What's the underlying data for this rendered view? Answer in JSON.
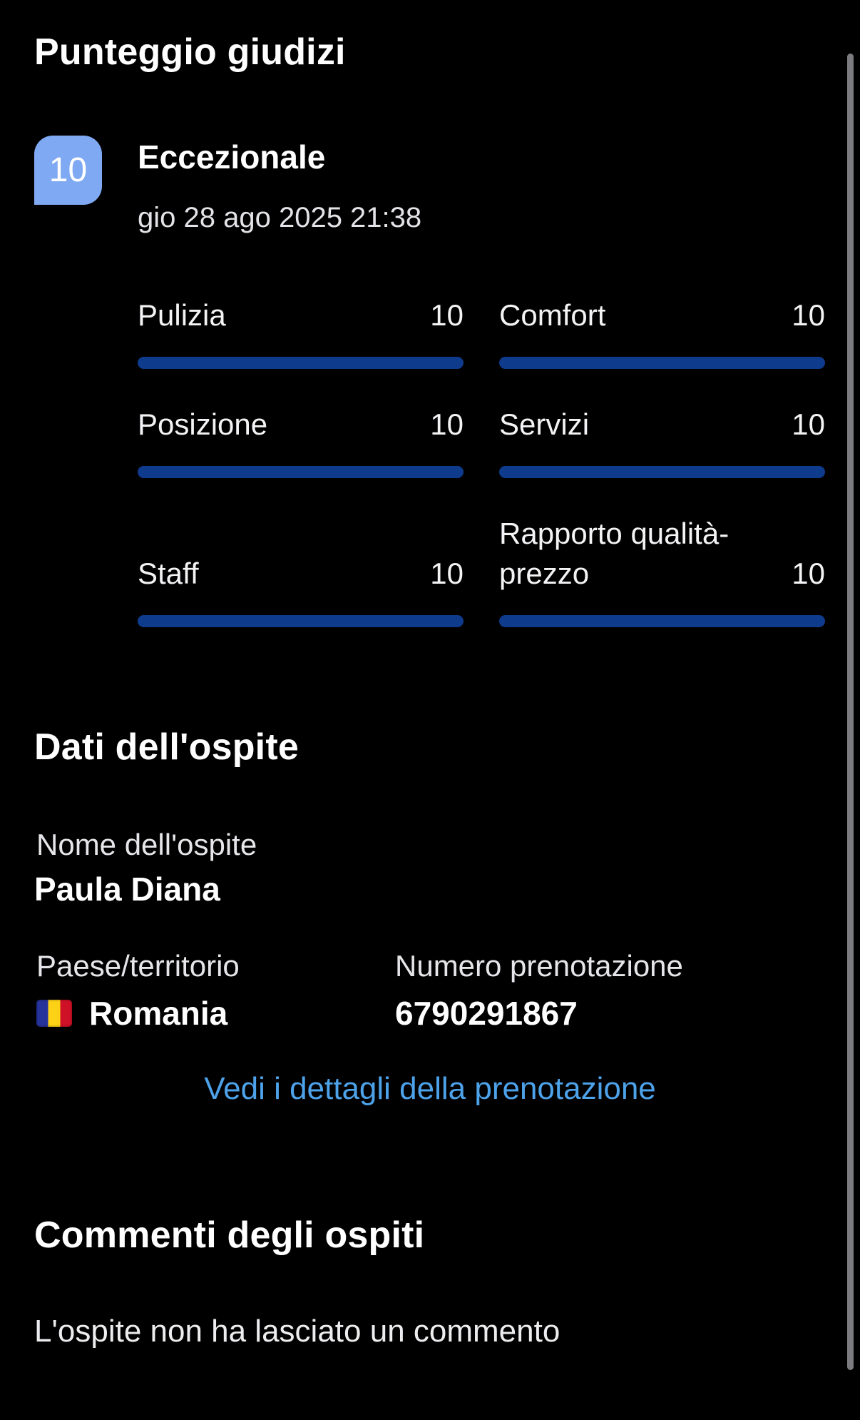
{
  "page": {
    "background_color": "#000000",
    "scrollbar_color": "#7c7c80"
  },
  "review_score": {
    "title": "Punteggio giudizi",
    "score": "10",
    "score_badge_color": "#7fa9f2",
    "label": "Eccezionale",
    "date": "gio 28 ago 2025 21:38",
    "bar_color": "#0e3b8c",
    "ratings": [
      {
        "label": "Pulizia",
        "value": 10,
        "max": 10
      },
      {
        "label": "Comfort",
        "value": 10,
        "max": 10
      },
      {
        "label": "Posizione",
        "value": 10,
        "max": 10
      },
      {
        "label": "Servizi",
        "value": 10,
        "max": 10
      },
      {
        "label": "Staff",
        "value": 10,
        "max": 10
      },
      {
        "label": "Rapporto qualità-prezzo",
        "value": 10,
        "max": 10
      }
    ]
  },
  "guest_details": {
    "title": "Dati dell'ospite",
    "name_label": "Nome dell'ospite",
    "name_value": "Paula Diana",
    "country_label": "Paese/territorio",
    "country_value": "Romania",
    "country_flag": "romania-flag",
    "flag_colors": [
      "#26339b",
      "#fcd116",
      "#ce1126"
    ],
    "booking_number_label": "Numero prenotazione",
    "booking_number_value": "6790291867",
    "details_link_label": "Vedi i dettagli della prenotazione",
    "link_color": "#4da2ea"
  },
  "guest_comments": {
    "title": "Commenti degli ospiti",
    "empty_message": "L'ospite non ha lasciato un commento"
  }
}
